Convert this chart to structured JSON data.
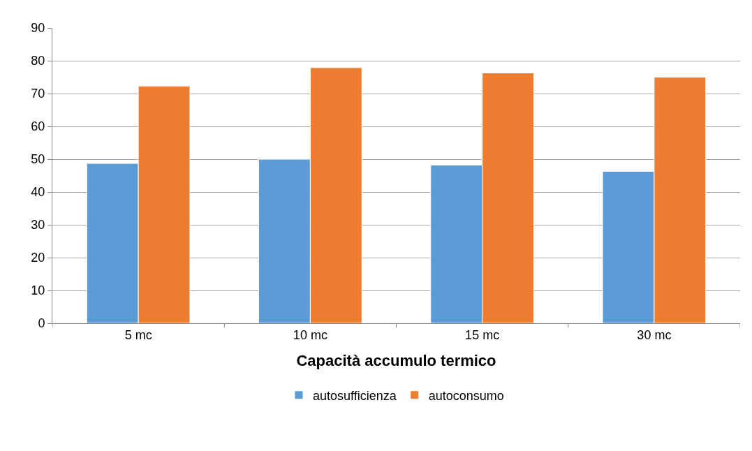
{
  "chart_data": {
    "type": "bar",
    "xlabel": "Capacità accumulo termico",
    "categories": [
      "5 mc",
      "10 mc",
      "15 mc",
      "30 mc"
    ],
    "series": [
      {
        "name": "autosufficienza",
        "color": "#5b9bd5",
        "values": [
          48.7,
          50,
          48.2,
          46.3
        ]
      },
      {
        "name": "autoconsumo",
        "color": "#ed7d31",
        "values": [
          72.3,
          77.9,
          76.3,
          75.0
        ]
      }
    ],
    "ylim": [
      0,
      90
    ],
    "yticks": [
      0,
      10,
      20,
      30,
      40,
      50,
      60,
      70,
      80,
      90
    ],
    "grid": "y",
    "legend": "bottom"
  }
}
